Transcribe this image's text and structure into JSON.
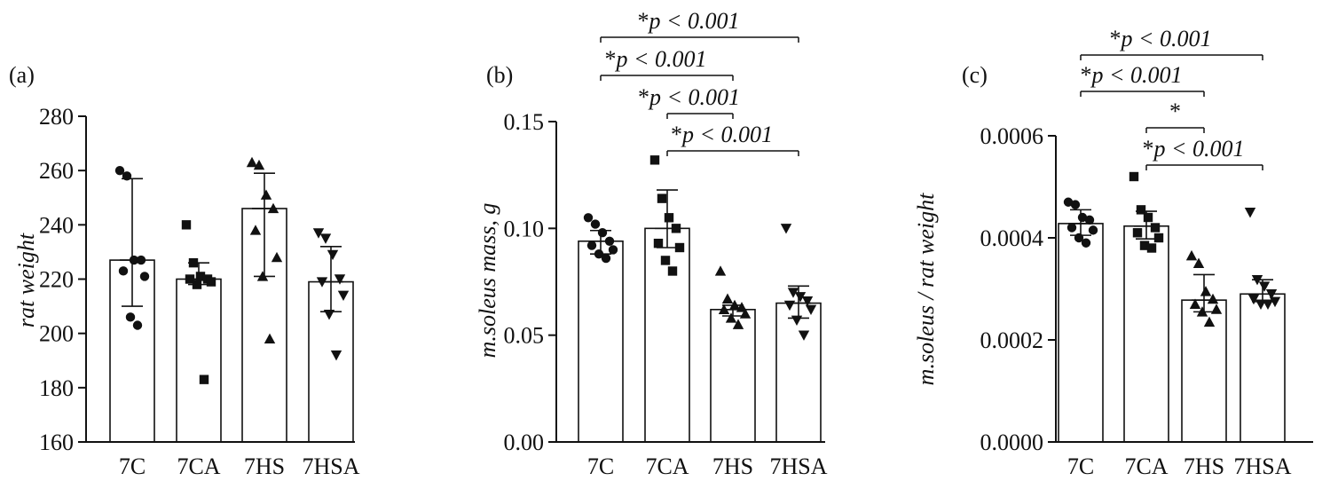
{
  "chart_data": [
    {
      "type": "bar",
      "panel_label": "(a)",
      "ylabel": "rat weight",
      "ylim": [
        160,
        280
      ],
      "yticks": [
        "160",
        "180",
        "200",
        "220",
        "240",
        "260",
        "280"
      ],
      "categories": [
        "7C",
        "7CA",
        "7HS",
        "7HSA"
      ],
      "markers": [
        "circle",
        "square",
        "triangle-up",
        "triangle-down"
      ],
      "values": [
        227,
        220,
        246,
        219
      ],
      "errors": [
        [
          210,
          257
        ],
        [
          218,
          226
        ],
        [
          221,
          259
        ],
        [
          208,
          232
        ]
      ],
      "points": [
        [
          260,
          258,
          227,
          227,
          223,
          221,
          206,
          203
        ],
        [
          240,
          226,
          221,
          220,
          220,
          219,
          218,
          183
        ],
        [
          263,
          262,
          251,
          246,
          238,
          228,
          221,
          198
        ],
        [
          237,
          235,
          229,
          220,
          219,
          214,
          207,
          192
        ]
      ],
      "annotations": []
    },
    {
      "type": "bar",
      "panel_label": "(b)",
      "ylabel": "m.soleus mass, g",
      "ylim": [
        0.0,
        0.15
      ],
      "yticks": [
        "0.00",
        "0.05",
        "0.10",
        "0.15"
      ],
      "categories": [
        "7C",
        "7CA",
        "7HS",
        "7HSA"
      ],
      "markers": [
        "circle",
        "square",
        "triangle-up",
        "triangle-down"
      ],
      "values": [
        0.094,
        0.1,
        0.062,
        0.065
      ],
      "errors": [
        [
          0.088,
          0.099
        ],
        [
          0.091,
          0.118
        ],
        [
          0.059,
          0.064
        ],
        [
          0.058,
          0.073
        ]
      ],
      "points": [
        [
          0.105,
          0.102,
          0.098,
          0.094,
          0.092,
          0.09,
          0.088,
          0.086
        ],
        [
          0.132,
          0.114,
          0.105,
          0.1,
          0.093,
          0.091,
          0.085,
          0.08
        ],
        [
          0.08,
          0.067,
          0.064,
          0.063,
          0.062,
          0.06,
          0.058,
          0.055
        ],
        [
          0.1,
          0.07,
          0.068,
          0.066,
          0.064,
          0.062,
          0.057,
          0.05
        ]
      ],
      "annotations": [
        {
          "from": 0,
          "to": 3,
          "label_star": "*",
          "label_p": "p < 0.001"
        },
        {
          "from": 0,
          "to": 2,
          "label_star": "*",
          "label_p": "p < 0.001"
        },
        {
          "from": 1,
          "to": 2,
          "label_star": "*",
          "label_p": "p < 0.001"
        },
        {
          "from": 1,
          "to": 3,
          "label_star": "*",
          "label_p": "p < 0.001"
        }
      ]
    },
    {
      "type": "bar",
      "panel_label": "(c)",
      "ylabel": "m.soleus / rat weight",
      "ylim": [
        0.0,
        0.0006
      ],
      "yticks": [
        "0.0000",
        "0.0002",
        "0.0004",
        "0.0006"
      ],
      "categories": [
        "7C",
        "7CA",
        "7HS",
        "7HSA"
      ],
      "markers": [
        "circle",
        "square",
        "triangle-up",
        "triangle-down"
      ],
      "values": [
        0.000428,
        0.000423,
        0.000278,
        0.00029
      ],
      "errors": [
        [
          0.000405,
          0.000455
        ],
        [
          0.000398,
          0.000452
        ],
        [
          0.000255,
          0.000328
        ],
        [
          0.000275,
          0.000318
        ]
      ],
      "points": [
        [
          0.00047,
          0.000465,
          0.00044,
          0.000435,
          0.00042,
          0.000415,
          0.0004,
          0.00039
        ],
        [
          0.00052,
          0.000455,
          0.00044,
          0.00042,
          0.00041,
          0.0004,
          0.000385,
          0.00038
        ],
        [
          0.000365,
          0.00035,
          0.000295,
          0.00028,
          0.00027,
          0.00026,
          0.000255,
          0.000235
        ],
        [
          0.00045,
          0.000318,
          0.000305,
          0.00029,
          0.00028,
          0.000275,
          0.00027,
          0.00027
        ]
      ],
      "annotations": [
        {
          "from": 0,
          "to": 3,
          "label_star": "*",
          "label_p": "p < 0.001"
        },
        {
          "from": 0,
          "to": 2,
          "label_star": "*",
          "label_p": "p < 0.001"
        },
        {
          "from": 1,
          "to": 2,
          "label_star": "*",
          "label_p": ""
        },
        {
          "from": 1,
          "to": 3,
          "label_star": "*",
          "label_p": "p < 0.001"
        }
      ]
    }
  ]
}
